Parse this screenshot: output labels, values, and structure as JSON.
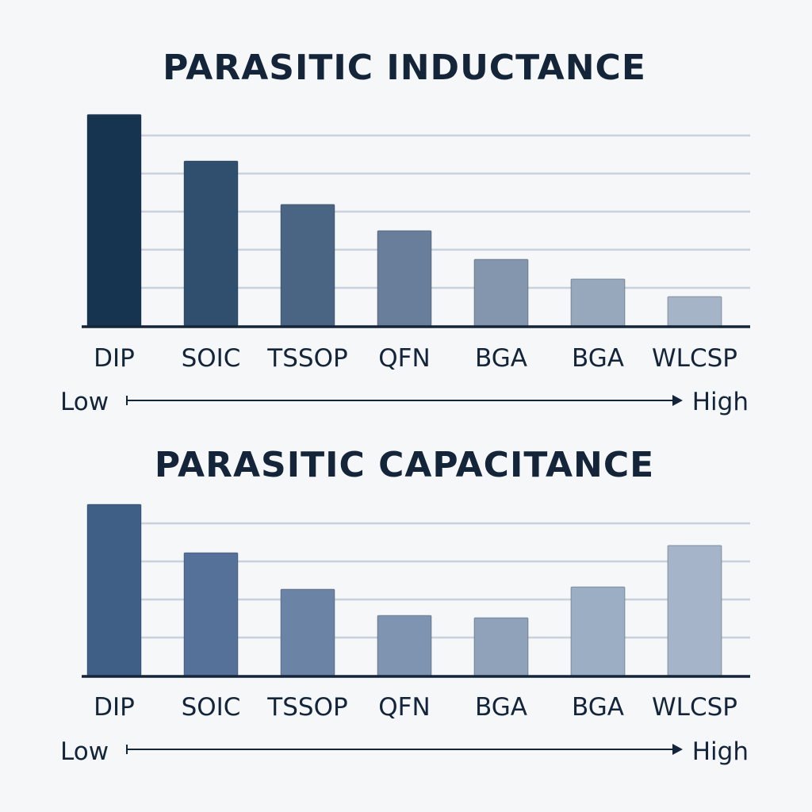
{
  "chart_data": [
    {
      "type": "bar",
      "title": "PARASITIC INDUCTANCE",
      "categories": [
        "DIP",
        "SOIC",
        "TSSOP",
        "QFN",
        "BGA",
        "BGA",
        "WLCSP"
      ],
      "values": [
        5.55,
        4.33,
        3.19,
        2.5,
        1.75,
        1.23,
        0.77
      ],
      "ylim": [
        0,
        5.6
      ],
      "grid_values": [
        1,
        2,
        3,
        4,
        5
      ],
      "grid": true,
      "y_tick_labels": false,
      "colors": [
        "#16344f",
        "#304f6e",
        "#4a6583",
        "#687e9a",
        "#8396ae",
        "#97a7bc",
        "#a6b4c7"
      ],
      "scale_low": "Low",
      "scale_high": "High"
    },
    {
      "type": "bar",
      "title": "PARASITIC CAPACITANCE",
      "categories": [
        "DIP",
        "SOIC",
        "TSSOP",
        "QFN",
        "BGA",
        "BGA",
        "WLCSP"
      ],
      "values": [
        4.5,
        3.23,
        2.27,
        1.58,
        1.52,
        2.33,
        3.42
      ],
      "ylim": [
        0,
        4.5
      ],
      "grid_values": [
        1,
        2,
        3,
        4
      ],
      "grid": true,
      "y_tick_labels": false,
      "colors": [
        "#405f86",
        "#55719a",
        "#6b84a6",
        "#7f94b0",
        "#8fa2ba",
        "#9caec3",
        "#a5b4c8"
      ],
      "scale_low": "Low",
      "scale_high": "High"
    }
  ]
}
